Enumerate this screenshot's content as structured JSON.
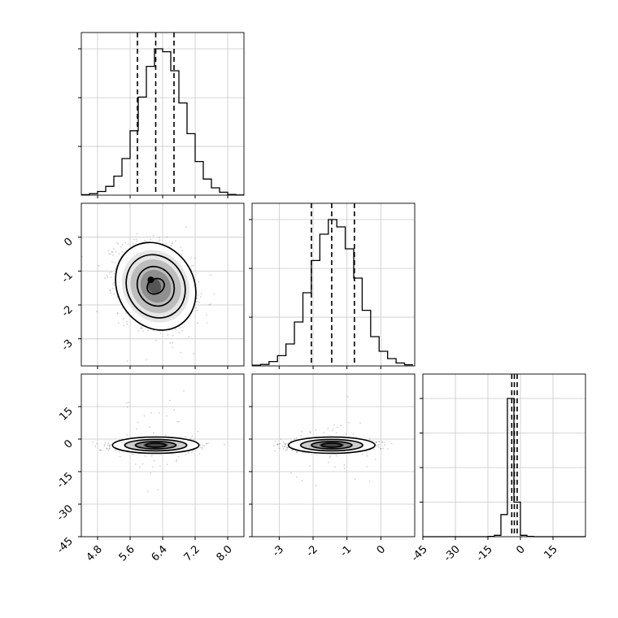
{
  "chart_data": [
    {
      "type": "bar",
      "panel": "hist-x1",
      "xlim": [
        4.4,
        8.4
      ],
      "bins_left": [
        4.4,
        4.6,
        4.8,
        5.0,
        5.2,
        5.4,
        5.6,
        5.8,
        6.0,
        6.2,
        6.4,
        6.6,
        6.8,
        7.0,
        7.2,
        7.4,
        7.6,
        7.8,
        8.0,
        8.2
      ],
      "bin_width": 0.2,
      "values": [
        0.003,
        0.01,
        0.025,
        0.06,
        0.13,
        0.25,
        0.44,
        0.67,
        0.88,
        1.0,
        0.98,
        0.85,
        0.63,
        0.42,
        0.23,
        0.11,
        0.05,
        0.02,
        0.005,
        0.001
      ],
      "quantiles": [
        5.78,
        6.23,
        6.68
      ],
      "xticks": [
        "4.8",
        "5.6",
        "6.4",
        "7.2",
        "8.0"
      ],
      "grid": true
    },
    {
      "type": "bar",
      "panel": "hist-x2",
      "xlim": [
        -3.8,
        1.0
      ],
      "bins_left": [
        -3.8,
        -3.55,
        -3.3,
        -3.05,
        -2.8,
        -2.55,
        -2.3,
        -2.05,
        -1.8,
        -1.55,
        -1.3,
        -1.05,
        -0.8,
        -0.55,
        -0.3,
        -0.05,
        0.2,
        0.45,
        0.7
      ],
      "bin_width": 0.25,
      "values": [
        0.005,
        0.01,
        0.03,
        0.07,
        0.15,
        0.3,
        0.5,
        0.72,
        0.9,
        1.0,
        0.95,
        0.8,
        0.6,
        0.38,
        0.2,
        0.1,
        0.05,
        0.02,
        0.008
      ],
      "quantiles": [
        -2.05,
        -1.45,
        -0.78
      ],
      "xticks": [
        "-3",
        "-2",
        "-1",
        "0"
      ],
      "grid": true
    },
    {
      "type": "bar",
      "panel": "hist-x3",
      "xlim": [
        -45,
        30
      ],
      "bins_left": [
        -45,
        -42,
        -39,
        -36,
        -33,
        -30,
        -27,
        -24,
        -21,
        -18,
        -15,
        -12,
        -9,
        -6,
        -3,
        0,
        3,
        6,
        9,
        12,
        15,
        18,
        21,
        24,
        27
      ],
      "bin_width": 3,
      "values": [
        0,
        0,
        0,
        0,
        0,
        0,
        0,
        0,
        0,
        0,
        0.002,
        0.01,
        0.16,
        1.0,
        0.25,
        0.01,
        0.002,
        0,
        0,
        0,
        0,
        0,
        0,
        0,
        0
      ],
      "quantiles": [
        -4.0,
        -2.8,
        -1.5
      ],
      "xticks": [
        "-45",
        "-30",
        "-15",
        "0",
        "15"
      ],
      "grid": true
    },
    {
      "type": "scatter",
      "panel": "joint-x1-x2",
      "xlim": [
        4.4,
        8.4
      ],
      "ylim": [
        -3.8,
        1.0
      ],
      "center": [
        6.23,
        -1.45
      ],
      "contours": "density levels 0.5σ, 1σ, 1.5σ, 2σ",
      "yticks": [
        "0",
        "-1",
        "-2",
        "-3"
      ]
    },
    {
      "type": "scatter",
      "panel": "joint-x1-x3",
      "xlim": [
        4.4,
        8.4
      ],
      "ylim": [
        -45,
        30
      ],
      "center": [
        6.23,
        -2.8
      ],
      "xticks": [
        "4.8",
        "5.6",
        "6.4",
        "7.2",
        "8.0"
      ],
      "yticks": [
        "15",
        "0",
        "-15",
        "-30",
        "-45"
      ]
    },
    {
      "type": "scatter",
      "panel": "joint-x2-x3",
      "xlim": [
        -3.8,
        1.0
      ],
      "ylim": [
        -45,
        30
      ],
      "center": [
        -1.45,
        -2.8
      ],
      "xticks": [
        "-3",
        "-2",
        "-1",
        "0"
      ]
    }
  ]
}
